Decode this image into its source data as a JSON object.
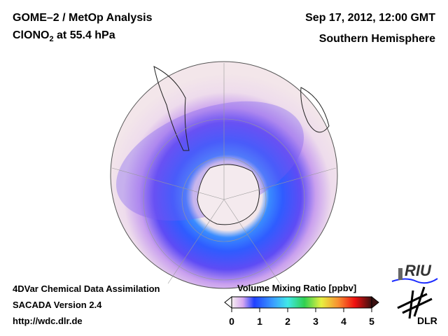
{
  "header": {
    "title": "GOME–2 / MetOp Analysis",
    "species": "ClONO",
    "species_sub": "2",
    "level": " at 55.4 hPa",
    "datetime": "Sep 17, 2012, 12:00 GMT",
    "region": "Southern Hemisphere"
  },
  "footer": {
    "line1": "4DVar Chemical Data Assimilation",
    "line2": "SACADA Version 2.4",
    "line3": "http://wdc.dlr.de"
  },
  "colorbar": {
    "label": "Volume Mixing Ratio [ppbv]",
    "ticks": [
      "0",
      "1",
      "2",
      "3",
      "4",
      "5"
    ],
    "min": 0,
    "max": 5
  },
  "logos": {
    "riu": "RIU",
    "dlr": "DLR"
  }
}
